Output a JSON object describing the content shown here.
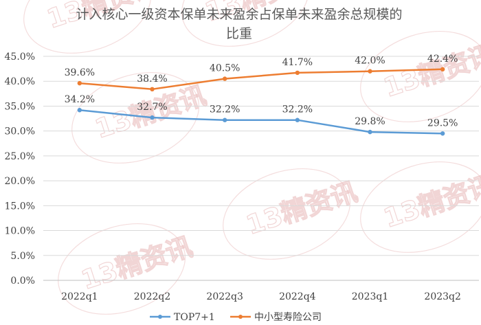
{
  "chart_data": {
    "type": "line",
    "title": "计入核心一级资本保单未来盈余占保单未来盈余总规模的比重",
    "title_lines": [
      "计入核心一级资本保单未来盈余占保单未来盈余总规模的",
      "比重"
    ],
    "categories": [
      "2022q1",
      "2022q2",
      "2022q3",
      "2022q4",
      "2023q1",
      "2023q2"
    ],
    "series": [
      {
        "name": "TOP7+1",
        "values": [
          34.2,
          32.7,
          32.2,
          32.2,
          29.8,
          29.5
        ],
        "labels": [
          "34.2%",
          "32.7%",
          "32.2%",
          "32.2%",
          "29.8%",
          "29.5%"
        ],
        "color": "#5b9bd5"
      },
      {
        "name": "中小型寿险公司",
        "values": [
          39.6,
          38.4,
          40.5,
          41.7,
          42.0,
          42.4
        ],
        "labels": [
          "39.6%",
          "38.4%",
          "40.5%",
          "41.7%",
          "42.0%",
          "42.4%"
        ],
        "color": "#ed7d31"
      }
    ],
    "ylim": [
      0,
      45
    ],
    "y_ticks": [
      "0.0%",
      "5.0%",
      "10.0%",
      "15.0%",
      "20.0%",
      "25.0%",
      "30.0%",
      "35.0%",
      "40.0%",
      "45.0%"
    ],
    "grid": true,
    "legend_position": "bottom",
    "xlabel": "",
    "ylabel": ""
  },
  "watermark": {
    "text": "13精资讯",
    "color": "#e6b3b3"
  }
}
